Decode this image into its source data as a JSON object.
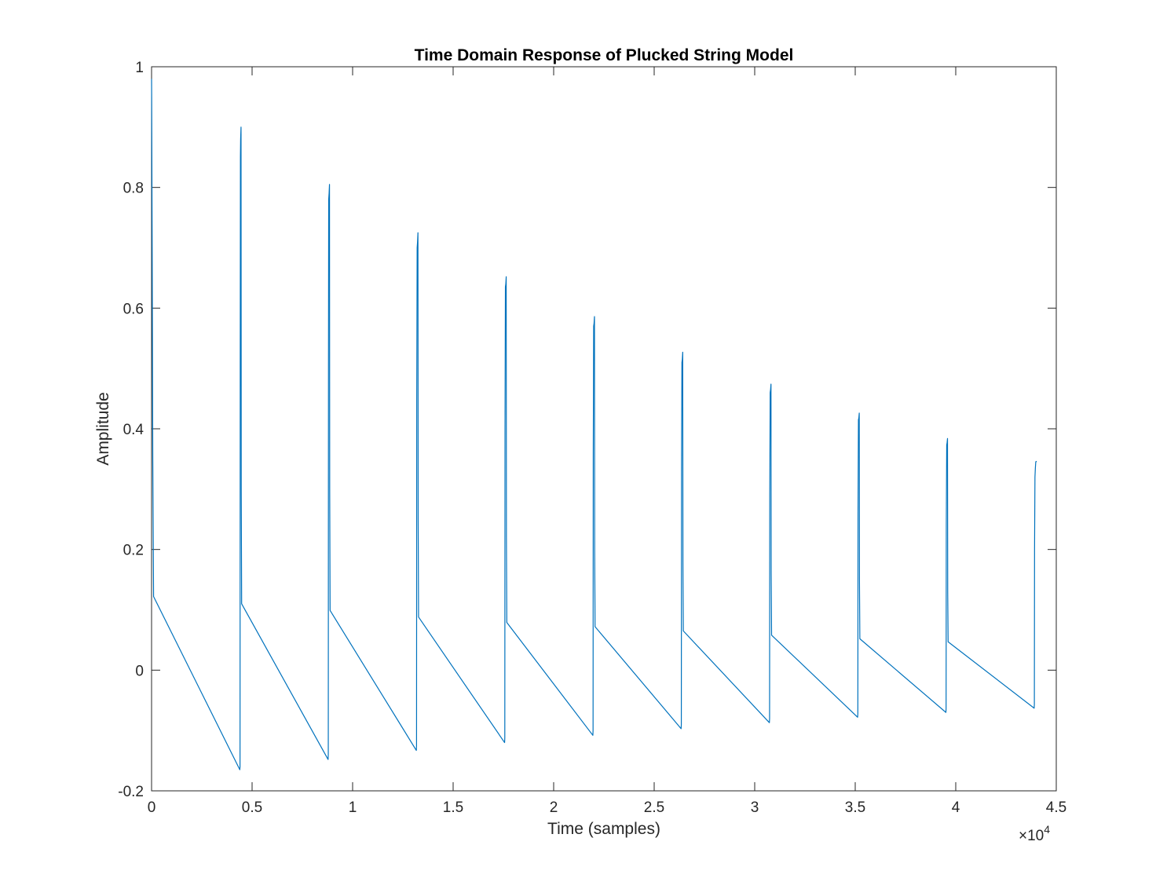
{
  "chart_data": {
    "type": "line",
    "title": "Time Domain Response of Plucked String Model",
    "xlabel": "Time (samples)",
    "ylabel": "Amplitude",
    "xlim": [
      0,
      45000
    ],
    "ylim": [
      -0.2,
      1
    ],
    "x_tick_labels": [
      "0",
      "0.5",
      "1",
      "1.5",
      "2",
      "2.5",
      "3",
      "3.5",
      "4",
      "4.5"
    ],
    "y_tick_labels": [
      "-0.2",
      "0",
      "0.2",
      "0.4",
      "0.6",
      "0.8",
      "1"
    ],
    "x_exponent_multiplier": "×",
    "x_exponent_base": "10",
    "x_exponent_power": "4",
    "grid": false,
    "line_color": "#0072bd",
    "series": [
      {
        "x": [
          0,
          5,
          30,
          60,
          100,
          4390,
          4400,
          4410,
          4420,
          4430,
          4450,
          4460,
          4480,
          8780,
          8790,
          8800,
          8810,
          8830,
          8850,
          8860,
          8880,
          13170,
          13180,
          13190,
          13210,
          13230,
          13250,
          13260,
          13280,
          17560,
          17570,
          17580,
          17600,
          17620,
          17640,
          17650,
          17670,
          21950,
          21960,
          21970,
          21990,
          22010,
          22030,
          22040,
          22060,
          26340,
          26350,
          26360,
          26380,
          26400,
          26420,
          26430,
          26450,
          30730,
          30740,
          30750,
          30770,
          30790,
          30810,
          30820,
          30840,
          35120,
          35130,
          35140,
          35160,
          35180,
          35200,
          35210,
          35230,
          39510,
          39520,
          39530,
          39550,
          39570,
          39590,
          39600,
          39620,
          43900,
          43910,
          43920,
          43940,
          43960,
          43980,
          44000,
          44020
        ],
        "y": [
          0.98,
          0.95,
          0.7,
          0.35,
          0.122,
          -0.165,
          -0.16,
          0.5,
          0.85,
          0.88,
          0.9,
          0.3,
          0.11,
          -0.148,
          -0.14,
          0.5,
          0.78,
          0.79,
          0.805,
          0.3,
          0.099,
          -0.133,
          -0.125,
          0.45,
          0.7,
          0.71,
          0.725,
          0.25,
          0.088,
          -0.12,
          -0.112,
          0.4,
          0.635,
          0.64,
          0.652,
          0.22,
          0.079,
          -0.108,
          -0.1,
          0.36,
          0.57,
          0.575,
          0.586,
          0.2,
          0.072,
          -0.097,
          -0.09,
          0.33,
          0.51,
          0.515,
          0.527,
          0.18,
          0.065,
          -0.087,
          -0.08,
          0.29,
          0.46,
          0.465,
          0.474,
          0.16,
          0.058,
          -0.078,
          -0.072,
          0.26,
          0.415,
          0.418,
          0.426,
          0.15,
          0.052,
          -0.07,
          -0.064,
          0.24,
          0.373,
          0.377,
          0.384,
          0.13,
          0.047,
          -0.063,
          -0.057,
          0.2,
          0.32,
          0.335,
          0.345,
          0.346,
          0.345
        ]
      }
    ]
  }
}
